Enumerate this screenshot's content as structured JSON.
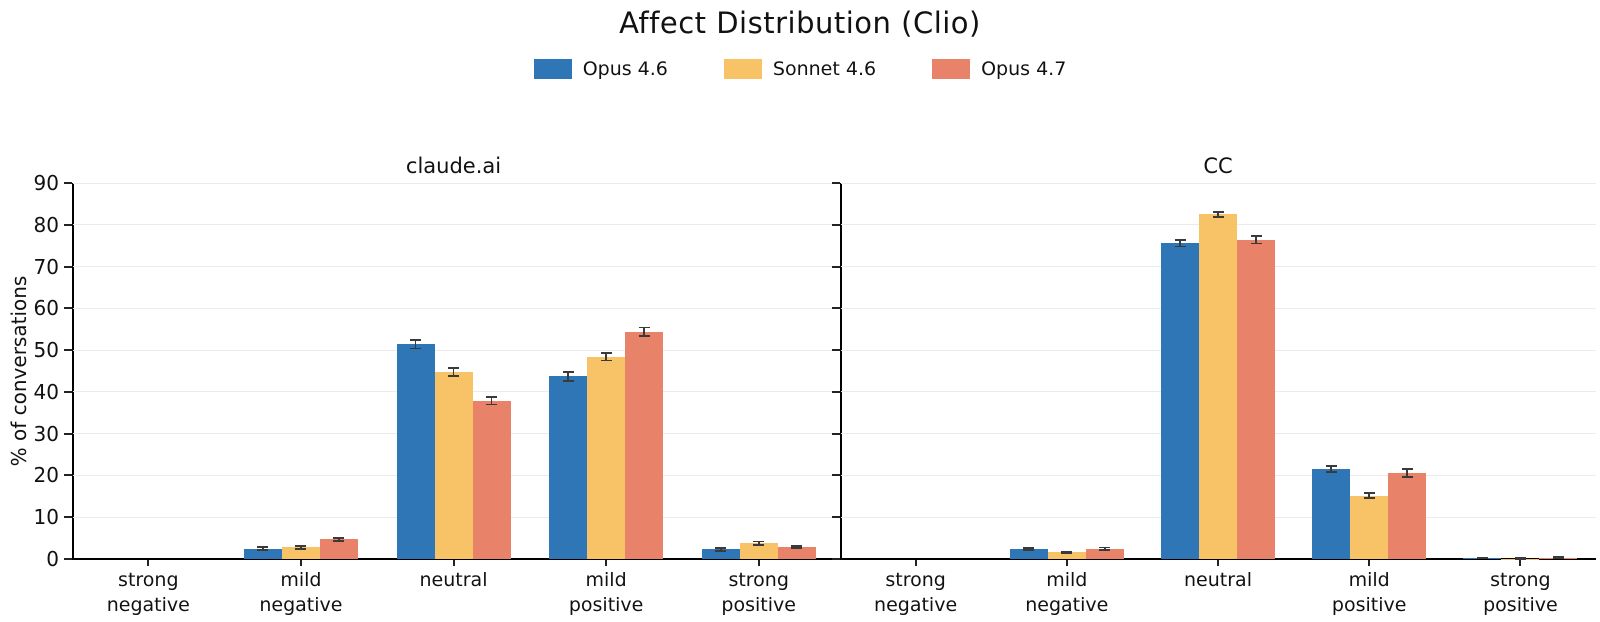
{
  "title": "Affect Distribution (Clio)",
  "ylabel": "% of conversations",
  "legend": [
    {
      "label": "Opus 4.6",
      "color": "#2e76b6",
      "swatch": "blue-swatch"
    },
    {
      "label": "Sonnet 4.6",
      "color": "#f8c366",
      "swatch": "yellow-swatch"
    },
    {
      "label": "Opus 4.7",
      "color": "#e8836a",
      "swatch": "salmon-swatch"
    }
  ],
  "chart_data": {
    "type": "bar",
    "grouped": true,
    "error_bars": true,
    "grid": true,
    "legend_position": "top-center",
    "categories": [
      "strong\nnegative",
      "mild\nnegative",
      "neutral",
      "mild\npositive",
      "strong\npositive"
    ],
    "yticks": [
      0,
      10,
      20,
      30,
      40,
      50,
      60,
      70,
      80,
      90
    ],
    "ylim": [
      0,
      90
    ],
    "colors": {
      "gridline": "#ebebeb",
      "errorbar": "#3a3a3a",
      "text": "#111111"
    },
    "subplots": [
      {
        "title": "claude.ai",
        "series": [
          {
            "name": "Opus 4.6",
            "color": "#2e76b6",
            "values": [
              0,
              2.5,
              51.4,
              43.7,
              2.3
            ],
            "errors": [
              0,
              0.3,
              1.0,
              1.0,
              0.3
            ]
          },
          {
            "name": "Sonnet 4.6",
            "color": "#f8c366",
            "values": [
              0,
              2.8,
              44.8,
              48.4,
              3.8
            ],
            "errors": [
              0,
              0.4,
              1.0,
              0.9,
              0.4
            ]
          },
          {
            "name": "Opus 4.7",
            "color": "#e8836a",
            "values": [
              0,
              4.7,
              37.9,
              54.4,
              2.9
            ],
            "errors": [
              0,
              0.4,
              0.9,
              1.0,
              0.3
            ]
          }
        ]
      },
      {
        "title": "CC",
        "series": [
          {
            "name": "Opus 4.6",
            "color": "#2e76b6",
            "values": [
              0,
              2.4,
              75.6,
              21.6,
              0.2
            ],
            "errors": [
              0,
              0.25,
              0.8,
              0.7,
              0.1
            ]
          },
          {
            "name": "Sonnet 4.6",
            "color": "#f8c366",
            "values": [
              0,
              1.6,
              82.5,
              15.2,
              0.1
            ],
            "errors": [
              0,
              0.2,
              0.6,
              0.6,
              0.1
            ]
          },
          {
            "name": "Opus 4.7",
            "color": "#e8836a",
            "values": [
              0,
              2.5,
              76.4,
              20.6,
              0.3
            ],
            "errors": [
              0,
              0.25,
              0.9,
              0.9,
              0.1
            ]
          }
        ]
      }
    ]
  }
}
